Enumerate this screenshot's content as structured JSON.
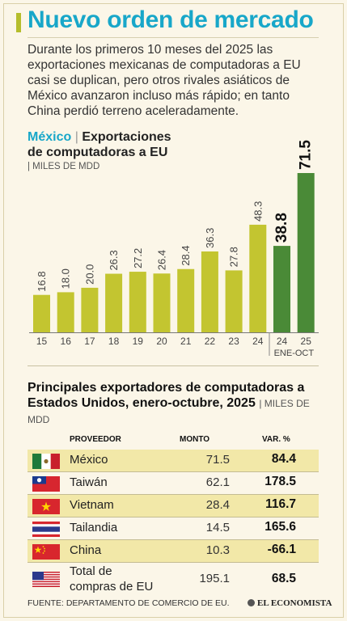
{
  "header": {
    "title": "Nuevo orden de mercado",
    "intro": "Durante los primeros 10 meses del 2025 las exportaciones mexicanas de computadoras a EU casi se duplican, pero otros rivales asiáticos de México avanzaron incluso más rápido; en tanto China perdió terreno aceleradamente."
  },
  "chart_head": {
    "country": "México",
    "separator": "|",
    "title_1": "Exportaciones",
    "title_2": "de computadoras a EU",
    "unit": "| MILES DE MDD"
  },
  "chart_data": {
    "type": "bar",
    "categories": [
      "15",
      "16",
      "17",
      "18",
      "19",
      "20",
      "21",
      "22",
      "23",
      "24",
      "24",
      "25"
    ],
    "values": [
      16.8,
      18.0,
      20.0,
      26.3,
      27.2,
      26.4,
      28.4,
      36.3,
      27.8,
      48.3,
      38.8,
      71.5
    ],
    "value_labels": [
      "16.8",
      "18.0",
      "20.0",
      "26.3",
      "27.2",
      "26.4",
      "28.4",
      "36.3",
      "27.8",
      "48.3",
      "38.8",
      "71.5"
    ],
    "period_label": "ENE-OCT",
    "ylim": [
      0,
      71.5
    ],
    "colors": {
      "annual": "#c3c530",
      "ene_oct": "#4a8a37"
    }
  },
  "table": {
    "title": "Principales exportadores de computadoras a Estados Unidos, enero-octubre, 2025",
    "unit": "| MILES DE MDD",
    "headers": {
      "provider": "PROVEEDOR",
      "amount": "MONTO",
      "var": "VAR. %"
    },
    "rows": [
      {
        "name": "México",
        "amount": "71.5",
        "var": "84.4",
        "flag": "mexico-flag-icon"
      },
      {
        "name": "Taiwán",
        "amount": "62.1",
        "var": "178.5",
        "flag": "taiwan-flag-icon"
      },
      {
        "name": "Vietnam",
        "amount": "28.4",
        "var": "116.7",
        "flag": "vietnam-flag-icon"
      },
      {
        "name": "Tailandia",
        "amount": "14.5",
        "var": "165.6",
        "flag": "thailand-flag-icon"
      },
      {
        "name": "China",
        "amount": "10.3",
        "var": "-66.1",
        "flag": "china-flag-icon"
      }
    ],
    "total": {
      "name_1": "Total de",
      "name_2": "compras de EU",
      "amount": "195.1",
      "var": "68.5",
      "flag": "usa-flag-icon"
    }
  },
  "footer": {
    "source": "FUENTE: DEPARTAMENTO DE COMERCIO DE EU.",
    "brand": "EL ECONOMISTA"
  }
}
